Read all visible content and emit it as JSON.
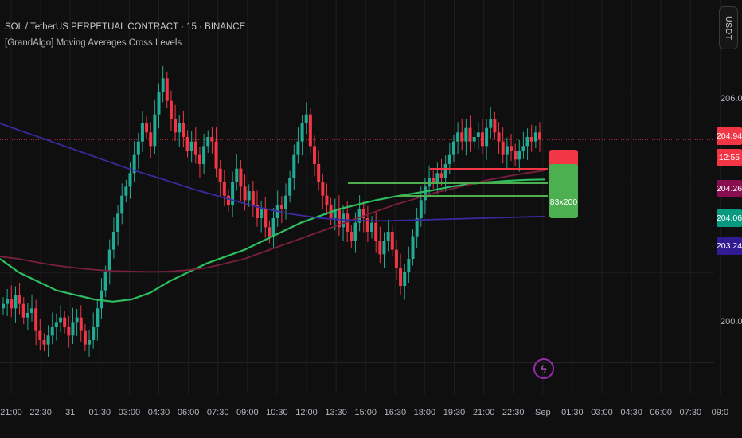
{
  "header": {
    "symbol_title": "SOL / TetherUS PERPETUAL CONTRACT · 15 · BINANCE",
    "indicator_title": "[GrandAlgo] Moving Averages Cross Levels"
  },
  "currency_button": "USDT",
  "price_axis": {
    "labels": [
      {
        "text": "206.00",
        "value": 206.0
      },
      {
        "text": "200.00",
        "value": 200.0
      }
    ]
  },
  "price_tags": [
    {
      "text": "204.94",
      "color": "#f23645"
    },
    {
      "text": "12:55",
      "color": "#f23645"
    },
    {
      "text": "204.26",
      "color": "#880e4f"
    },
    {
      "text": "204.06",
      "color": "#089981"
    },
    {
      "text": "203.24",
      "color": "#311b92"
    }
  ],
  "cross_labels": [
    {
      "text": "",
      "color": "#f23645"
    },
    {
      "text": "",
      "color": "#4caf50"
    },
    {
      "text": "83x200",
      "color": "#4caf50"
    }
  ],
  "time_axis": [
    "21:00",
    "22:30",
    "31",
    "01:30",
    "03:00",
    "04:30",
    "06:00",
    "07:30",
    "09:00",
    "10:30",
    "12:00",
    "13:30",
    "15:00",
    "16:30",
    "18:00",
    "19:30",
    "21:00",
    "22:30",
    "Sep",
    "01:30",
    "03:00",
    "04:30",
    "06:00",
    "07:30",
    "09:0"
  ],
  "icons": {
    "flash": "flash-icon"
  },
  "colors": {
    "up": "#22ab94",
    "down": "#f23645",
    "ma_fast": "#2ebd5f",
    "ma_slow": "#7b1f3f",
    "ma_long": "#3a2aa0"
  },
  "chart_data": {
    "type": "candlestick",
    "title": "SOL / TetherUS PERPETUAL CONTRACT · 15 · BINANCE",
    "x_ticks": [
      "21:00",
      "22:30",
      "31",
      "01:30",
      "03:00",
      "04:30",
      "06:00",
      "07:30",
      "09:00",
      "10:30",
      "12:00",
      "13:30",
      "15:00",
      "16:30",
      "18:00",
      "19:30",
      "21:00",
      "22:30",
      "Sep",
      "01:30",
      "03:00",
      "04:30",
      "06:00",
      "07:30",
      "09:0"
    ],
    "ylim": [
      199.3,
      206.8
    ],
    "grid": true,
    "closes": [
      201.3,
      201.4,
      201.2,
      201.5,
      201.3,
      201.0,
      201.1,
      201.2,
      200.7,
      200.5,
      200.4,
      200.6,
      200.8,
      200.9,
      201.0,
      200.8,
      200.6,
      200.9,
      201.0,
      200.7,
      200.4,
      200.5,
      200.8,
      201.2,
      201.6,
      202.0,
      202.5,
      202.9,
      203.3,
      203.7,
      203.9,
      204.2,
      204.6,
      204.9,
      205.3,
      205.1,
      204.8,
      205.5,
      206.0,
      206.3,
      205.8,
      205.4,
      205.1,
      205.3,
      205.0,
      204.7,
      204.9,
      204.6,
      204.4,
      204.8,
      205.0,
      204.9,
      204.3,
      204.0,
      203.7,
      203.5,
      204.0,
      204.3,
      203.9,
      203.6,
      203.8,
      203.5,
      203.2,
      203.4,
      203.0,
      202.8,
      203.2,
      203.5,
      203.4,
      203.7,
      204.1,
      204.6,
      204.9,
      205.3,
      205.5,
      204.8,
      204.4,
      204.0,
      203.7,
      203.5,
      203.2,
      203.4,
      203.0,
      203.3,
      202.9,
      202.7,
      203.1,
      203.4,
      203.2,
      202.9,
      203.1,
      202.7,
      202.4,
      202.7,
      202.9,
      202.5,
      202.1,
      201.7,
      202.0,
      202.3,
      202.8,
      203.2,
      203.6,
      203.9,
      204.1,
      204.0,
      204.2,
      204.1,
      204.4,
      204.6,
      204.9,
      205.1,
      204.9,
      205.2,
      204.9,
      205.0,
      205.1,
      204.8,
      205.2,
      205.4,
      205.1,
      204.9,
      204.6,
      204.8,
      204.7,
      204.5,
      204.7,
      204.8,
      205.0,
      204.9,
      205.1,
      204.94
    ],
    "series": [
      {
        "name": "",
        "values": [
          202.3,
          202.0,
          201.8,
          201.6,
          201.5,
          201.4,
          201.35,
          201.4,
          201.55,
          201.8,
          202.0,
          202.2,
          202.35,
          202.5,
          202.7,
          202.9,
          203.1,
          203.25,
          203.4,
          203.5,
          203.6,
          203.68,
          203.75,
          203.82,
          203.9,
          203.96,
          204.0,
          204.03,
          204.05,
          204.06
        ]
      },
      {
        "name": "",
        "values": [
          202.35,
          202.3,
          202.22,
          202.15,
          202.1,
          202.06,
          202.03,
          202.02,
          202.01,
          202.02,
          202.05,
          202.1,
          202.2,
          202.3,
          202.45,
          202.6,
          202.75,
          202.9,
          203.05,
          203.2,
          203.35,
          203.5,
          203.62,
          203.75,
          203.85,
          203.95,
          204.05,
          204.13,
          204.2,
          204.26
        ]
      },
      {
        "name": "",
        "values": [
          205.3,
          205.05,
          204.8,
          204.55,
          204.3,
          204.08,
          203.85,
          203.65,
          203.45,
          203.3,
          203.2,
          203.15,
          203.14,
          203.16,
          203.18,
          203.2,
          203.22,
          203.24
        ]
      }
    ]
  }
}
